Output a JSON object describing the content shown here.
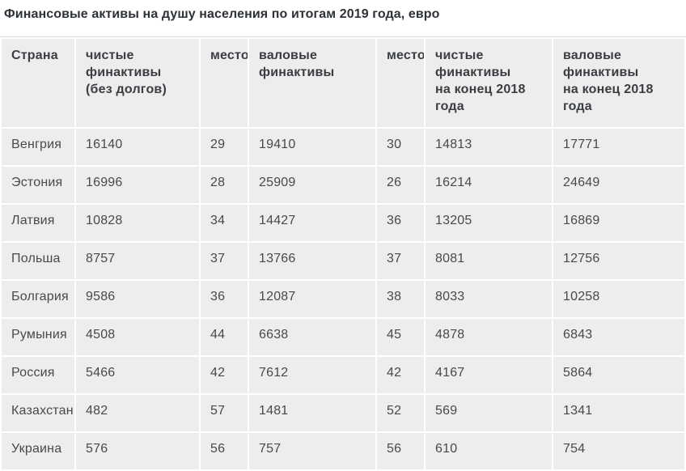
{
  "title": "Финансовые активы на душу населения по итогам 2019 года, евро",
  "colors": {
    "cell_background": "#ededed",
    "gap_background": "#ffffff",
    "title_text": "#2d3138",
    "header_text": "#3a3d42",
    "cell_text": "#47494d",
    "table_top_border": "#dedede"
  },
  "chart_data": {
    "type": "table",
    "title": "Финансовые активы на душу населения по итогам 2019 года, евро",
    "columns": [
      "Страна",
      "чистые\nфинактивы\n(без долгов)",
      "место",
      "валовые\nфинактивы",
      "место",
      "чистые финактивы\nна конец 2018\nгода",
      "валовые\nфинактивы\nна конец 2018\nгода"
    ],
    "rows": [
      [
        "Венгрия",
        "16140",
        "29",
        "19410",
        "30",
        "14813",
        "17771"
      ],
      [
        "Эстония",
        "16996",
        "28",
        "25909",
        "26",
        "16214",
        "24649"
      ],
      [
        "Латвия",
        "10828",
        "34",
        "14427",
        "36",
        "13205",
        "16869"
      ],
      [
        "Польша",
        "8757",
        "37",
        "13766",
        "37",
        "8081",
        "12756"
      ],
      [
        "Болгария",
        "9586",
        "36",
        "12087",
        "38",
        "8033",
        "10258"
      ],
      [
        "Румыния",
        "4508",
        "44",
        "6638",
        "45",
        "4878",
        "6843"
      ],
      [
        "Россия",
        "5466",
        "42",
        "7612",
        "42",
        "4167",
        "5864"
      ],
      [
        "Казахстан",
        "482",
        "57",
        "1481",
        "52",
        "569",
        "1341"
      ],
      [
        "Украина",
        "576",
        "56",
        "757",
        "56",
        "610",
        "754"
      ]
    ]
  }
}
